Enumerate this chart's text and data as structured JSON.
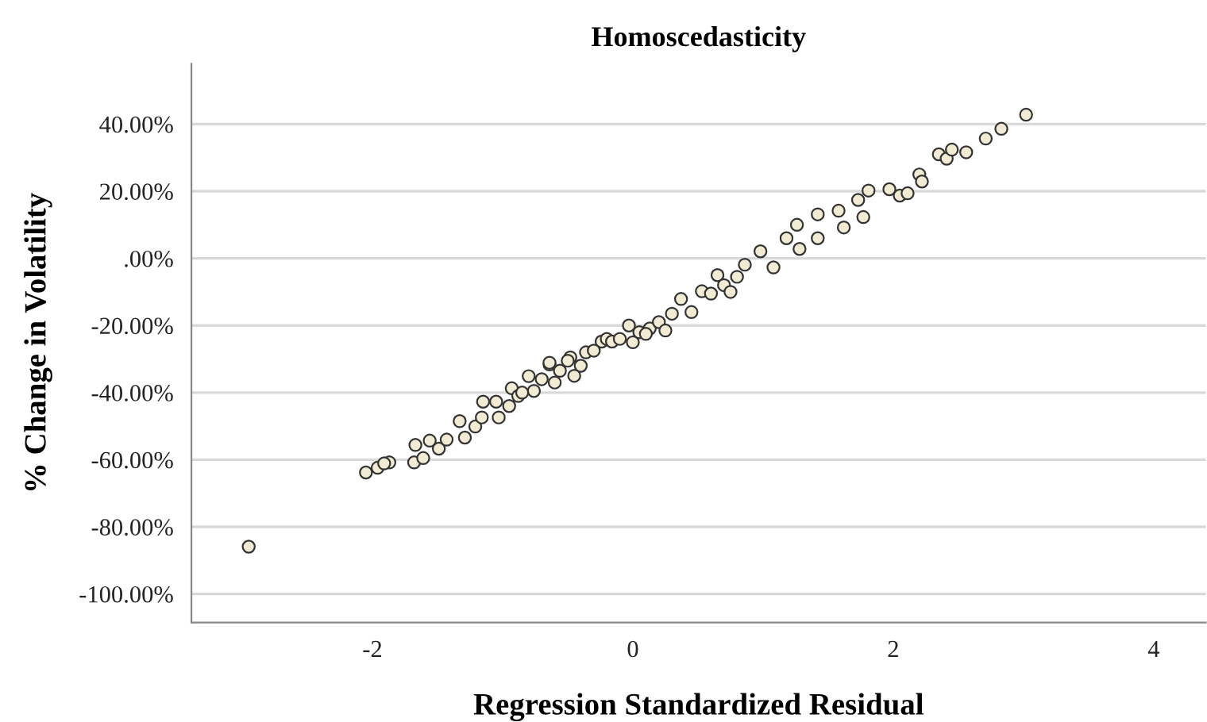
{
  "chart_data": {
    "type": "scatter",
    "title": "Homoscedasticity",
    "xlabel": "Regression Standardized Residual",
    "ylabel": "% Change in Volatility",
    "xlim": [
      -3.39,
      4.4
    ],
    "xticks": [
      -2,
      0,
      2,
      4
    ],
    "ylim": [
      -108.5,
      58
    ],
    "yticks": [
      {
        "value": 40,
        "label": "40.00%"
      },
      {
        "value": 20,
        "label": "20.00%"
      },
      {
        "value": 0,
        "label": ".00%"
      },
      {
        "value": -20,
        "label": "-20.00%"
      },
      {
        "value": -40,
        "label": "-40.00%"
      },
      {
        "value": -60,
        "label": "-60.00%"
      },
      {
        "value": -80,
        "label": "-80.00%"
      },
      {
        "value": -100,
        "label": "-100.00%"
      }
    ],
    "grid": "y",
    "marker": "circle",
    "legend": false,
    "series": [
      {
        "color": "#f0ebd2",
        "x": [
          -2.95,
          -2.05,
          -1.96,
          -1.87,
          -1.91,
          -1.68,
          -1.67,
          -1.61,
          -1.56,
          -1.49,
          -1.43,
          -1.33,
          -1.29,
          -1.21,
          -1.16,
          -1.15,
          -1.05,
          -1.03,
          -0.93,
          -0.88,
          -0.8,
          -0.76,
          -0.64,
          -0.56,
          -0.48,
          -0.36,
          -0.24,
          -0.64,
          -0.2,
          -0.03,
          -0.16,
          0.13,
          0.37,
          0.53,
          0.65,
          0.86,
          0.98,
          1.08,
          1.18,
          1.26,
          1.28,
          1.42,
          1.42,
          1.58,
          1.62,
          1.73,
          1.77,
          1.81,
          1.97,
          2.05,
          2.11,
          2.2,
          2.22,
          2.35,
          2.41,
          2.45,
          2.56,
          2.71,
          2.83,
          3.02,
          -0.7,
          -0.6,
          -0.5,
          -0.4,
          -0.3,
          -0.1,
          0.0,
          0.05,
          0.2,
          0.25,
          0.3,
          0.45,
          0.6,
          0.7,
          0.75,
          0.8,
          -0.95,
          -0.85,
          -0.45,
          0.1
        ],
        "values": [
          -85.9,
          -63.8,
          -62.4,
          -60.8,
          -61.1,
          -60.8,
          -55.6,
          -59.5,
          -54.3,
          -56.7,
          -54.0,
          -48.5,
          -53.4,
          -50.1,
          -47.4,
          -42.7,
          -42.7,
          -47.4,
          -38.7,
          -41.0,
          -35.1,
          -39.5,
          -31.6,
          -33.5,
          -29.5,
          -28.0,
          -24.8,
          -31.1,
          -24.0,
          -20.0,
          -24.8,
          -20.9,
          -12.1,
          -9.8,
          -5.0,
          -1.9,
          2.1,
          -2.7,
          6.0,
          10.0,
          2.8,
          13.1,
          6.0,
          14.2,
          9.2,
          17.4,
          12.3,
          20.2,
          20.6,
          18.7,
          19.4,
          25.0,
          22.9,
          31.0,
          29.7,
          32.4,
          31.6,
          35.7,
          38.6,
          42.8,
          -36.0,
          -37.0,
          -30.5,
          -32.0,
          -27.5,
          -24.0,
          -25.0,
          -22.0,
          -19.0,
          -21.5,
          -16.5,
          -16.0,
          -10.5,
          -8.0,
          -10.0,
          -5.5,
          -44.0,
          -40.0,
          -35.0,
          -22.5
        ]
      }
    ]
  }
}
